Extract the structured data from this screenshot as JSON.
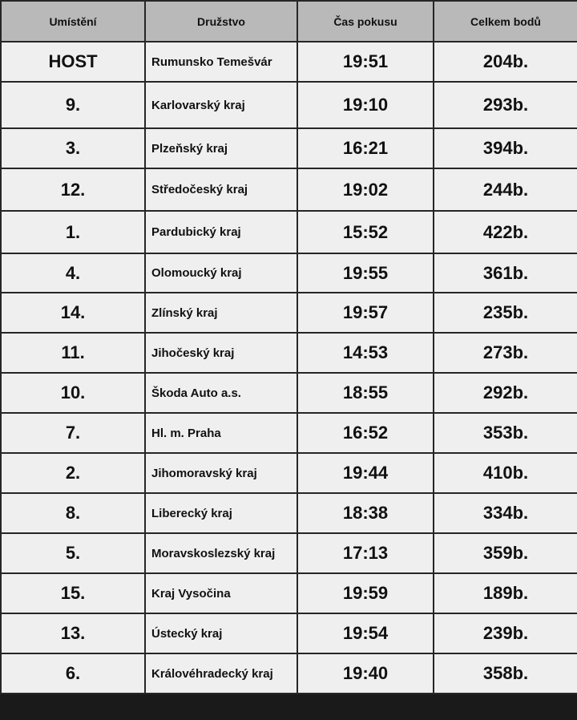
{
  "headers": [
    "Umístění",
    "Družstvo",
    "Čas pokusu",
    "Celkem bodů"
  ],
  "rows": [
    {
      "place": "HOST",
      "team": "Rumunsko Temešvár",
      "time": "19:51",
      "points": "204b."
    },
    {
      "place": "9.",
      "team": "Karlovarský kraj",
      "time": "19:10",
      "points": "293b."
    },
    {
      "place": "3.",
      "team": "Plzeňský kraj",
      "time": "16:21",
      "points": "394b."
    },
    {
      "place": "12.",
      "team": "Středočeský kraj",
      "time": "19:02",
      "points": "244b."
    },
    {
      "place": "1.",
      "team": "Pardubický kraj",
      "time": "15:52",
      "points": "422b."
    },
    {
      "place": "4.",
      "team": "Olomoucký kraj",
      "time": "19:55",
      "points": "361b."
    },
    {
      "place": "14.",
      "team": "Zlínský kraj",
      "time": "19:57",
      "points": "235b."
    },
    {
      "place": "11.",
      "team": "Jihočeský kraj",
      "time": "14:53",
      "points": "273b."
    },
    {
      "place": "10.",
      "team": "Škoda Auto a.s.",
      "time": "18:55",
      "points": "292b."
    },
    {
      "place": "7.",
      "team": "Hl. m. Praha",
      "time": "16:52",
      "points": "353b."
    },
    {
      "place": "2.",
      "team": "Jihomoravský kraj",
      "time": "19:44",
      "points": "410b."
    },
    {
      "place": "8.",
      "team": "Liberecký kraj",
      "time": "18:38",
      "points": "334b."
    },
    {
      "place": "5.",
      "team": "Moravskoslezský kraj",
      "time": "17:13",
      "points": "359b."
    },
    {
      "place": "15.",
      "team": "Kraj Vysočina",
      "time": "19:59",
      "points": "189b."
    },
    {
      "place": "13.",
      "team": "Ústecký kraj",
      "time": "19:54",
      "points": "239b."
    },
    {
      "place": "6.",
      "team": "Královéhradecký kraj",
      "time": "19:40",
      "points": "358b."
    }
  ]
}
